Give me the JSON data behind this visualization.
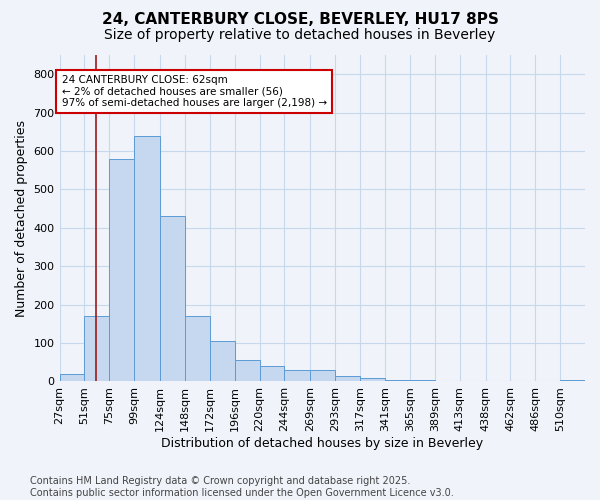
{
  "title_line1": "24, CANTERBURY CLOSE, BEVERLEY, HU17 8PS",
  "title_line2": "Size of property relative to detached houses in Beverley",
  "xlabel": "Distribution of detached houses by size in Beverley",
  "ylabel": "Number of detached properties",
  "footnote": "Contains HM Land Registry data © Crown copyright and database right 2025.\nContains public sector information licensed under the Open Government Licence v3.0.",
  "bin_labels": [
    "27sqm",
    "51sqm",
    "75sqm",
    "99sqm",
    "124sqm",
    "148sqm",
    "172sqm",
    "196sqm",
    "220sqm",
    "244sqm",
    "269sqm",
    "293sqm",
    "317sqm",
    "341sqm",
    "365sqm",
    "389sqm",
    "413sqm",
    "438sqm",
    "462sqm",
    "486sqm",
    "510sqm"
  ],
  "bin_edges": [
    27,
    51,
    75,
    99,
    124,
    148,
    172,
    196,
    220,
    244,
    269,
    293,
    317,
    341,
    365,
    389,
    413,
    438,
    462,
    486,
    510
  ],
  "bar_heights": [
    20,
    170,
    580,
    640,
    430,
    170,
    105,
    55,
    40,
    30,
    30,
    15,
    8,
    5,
    5,
    0,
    0,
    0,
    0,
    0,
    5
  ],
  "bar_color": "#c5d8f0",
  "bar_edge_color": "#5b9bd5",
  "property_size": 62,
  "vline_color": "#9b1a1a",
  "annotation_text": "24 CANTERBURY CLOSE: 62sqm\n← 2% of detached houses are smaller (56)\n97% of semi-detached houses are larger (2,198) →",
  "annotation_box_color": "#ffffff",
  "annotation_border_color": "#cc0000",
  "ylim": [
    0,
    850
  ],
  "yticks": [
    0,
    100,
    200,
    300,
    400,
    500,
    600,
    700,
    800
  ],
  "background_color": "#f0f4fa",
  "plot_background": "#f0f4fa",
  "grid_color": "#c8d8ec",
  "title_fontsize": 11,
  "subtitle_fontsize": 10,
  "axis_label_fontsize": 9,
  "tick_fontsize": 8,
  "footnote_fontsize": 7
}
